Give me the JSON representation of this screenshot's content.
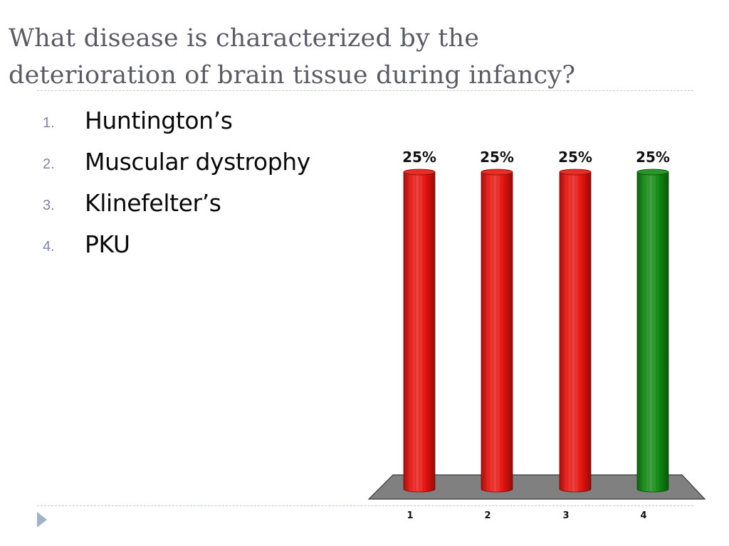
{
  "slide": {
    "title_line1": "What disease is characterized by the",
    "title_line2": "deterioration of brain tissue during infancy?"
  },
  "options": [
    {
      "number": "1.",
      "text": "Huntington’s"
    },
    {
      "number": "2.",
      "text": "Muscular dystrophy"
    },
    {
      "number": "3.",
      "text": "Klinefelter’s"
    },
    {
      "number": "4.",
      "text": "PKU"
    }
  ],
  "chart_data": {
    "type": "bar",
    "categories": [
      "1",
      "2",
      "3",
      "4"
    ],
    "values": [
      25,
      25,
      25,
      25
    ],
    "data_labels": [
      "25%",
      "25%",
      "25%",
      "25%"
    ],
    "ylim": [
      0,
      25
    ],
    "grid": false,
    "bar_colors": [
      "#e8140f",
      "#e8140f",
      "#e8140f",
      "#108a12"
    ],
    "floor_color": "#808080"
  },
  "colors": {
    "title": "#5b5b66",
    "option_number": "#7b87a4",
    "accent_arrow": "#9eb3c8",
    "incorrect_bar": "#e8140f",
    "correct_bar": "#108a12"
  }
}
